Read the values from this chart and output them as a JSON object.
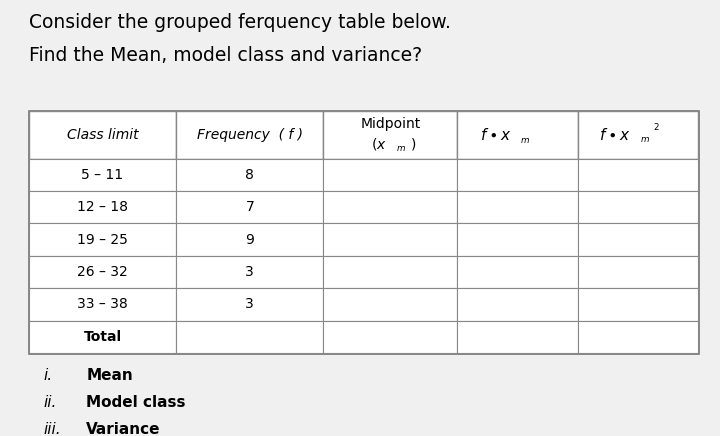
{
  "title_line1": "Consider the grouped ferquency table below.",
  "title_line2": "Find the Mean, model class and variance?",
  "bg_color": "#f0f0f0",
  "table_bg": "#ffffff",
  "col_headers": [
    "Class limit",
    "Frequency  ( f )",
    "Midpoint\n(xₘ )",
    "f •xₘ",
    "f •xₘ²"
  ],
  "rows": [
    [
      "5 – 11",
      "8",
      "",
      "",
      ""
    ],
    [
      "12 – 18",
      "7",
      "",
      "",
      ""
    ],
    [
      "19 – 25",
      "9",
      "",
      "",
      ""
    ],
    [
      "26 – 32",
      "3",
      "",
      "",
      ""
    ],
    [
      "33 – 38",
      "3",
      "",
      "",
      ""
    ],
    [
      "Total",
      "",
      "",
      "",
      ""
    ]
  ],
  "footer_items": [
    [
      "i.",
      "Mean"
    ],
    [
      "ii.",
      "Model class"
    ],
    [
      "iii.",
      "Variance"
    ]
  ],
  "title_fontsize": 13.5,
  "header_fontsize": 10,
  "cell_fontsize": 10,
  "footer_fontsize": 11
}
